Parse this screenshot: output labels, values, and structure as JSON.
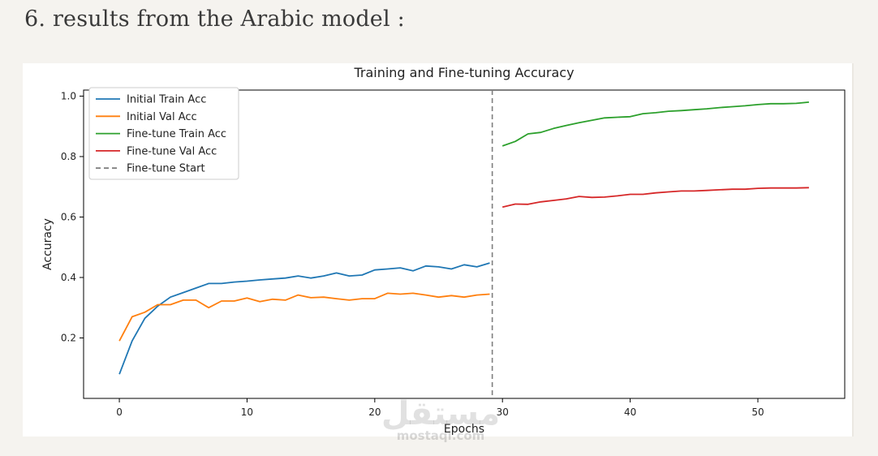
{
  "page": {
    "heading": "6. results from the Arabic model :"
  },
  "chart_data": {
    "type": "line",
    "title": "Training and Fine-tuning Accuracy",
    "xlabel": "Epochs",
    "ylabel": "Accuracy",
    "xlim": [
      -2.8,
      56.8
    ],
    "ylim": [
      0.0,
      1.02
    ],
    "xticks": [
      0,
      10,
      20,
      30,
      40,
      50
    ],
    "yticks": [
      0.2,
      0.4,
      0.6,
      0.8,
      1.0
    ],
    "grid": false,
    "legend_position": "upper-left",
    "series": [
      {
        "name": "Initial Train Acc",
        "color": "#1f77b4",
        "x": [
          0,
          1,
          2,
          3,
          4,
          5,
          6,
          7,
          8,
          9,
          10,
          11,
          12,
          13,
          14,
          15,
          16,
          17,
          18,
          19,
          20,
          21,
          22,
          23,
          24,
          25,
          26,
          27,
          28,
          29
        ],
        "values": [
          0.08,
          0.19,
          0.265,
          0.305,
          0.335,
          0.35,
          0.365,
          0.38,
          0.38,
          0.385,
          0.388,
          0.392,
          0.395,
          0.398,
          0.405,
          0.398,
          0.405,
          0.415,
          0.405,
          0.408,
          0.425,
          0.428,
          0.432,
          0.422,
          0.438,
          0.435,
          0.428,
          0.442,
          0.435,
          0.448
        ]
      },
      {
        "name": "Initial Val Acc",
        "color": "#ff7f0e",
        "x": [
          0,
          1,
          2,
          3,
          4,
          5,
          6,
          7,
          8,
          9,
          10,
          11,
          12,
          13,
          14,
          15,
          16,
          17,
          18,
          19,
          20,
          21,
          22,
          23,
          24,
          25,
          26,
          27,
          28,
          29
        ],
        "values": [
          0.19,
          0.27,
          0.285,
          0.31,
          0.31,
          0.325,
          0.325,
          0.3,
          0.322,
          0.322,
          0.332,
          0.32,
          0.328,
          0.325,
          0.342,
          0.333,
          0.335,
          0.33,
          0.325,
          0.33,
          0.33,
          0.348,
          0.345,
          0.348,
          0.342,
          0.335,
          0.34,
          0.335,
          0.342,
          0.345
        ]
      },
      {
        "name": "Fine-tune Train Acc",
        "color": "#2ca02c",
        "x": [
          30,
          31,
          32,
          33,
          34,
          35,
          36,
          37,
          38,
          39,
          40,
          41,
          42,
          43,
          44,
          45,
          46,
          47,
          48,
          49,
          50,
          51,
          52,
          53,
          54
        ],
        "values": [
          0.835,
          0.85,
          0.875,
          0.88,
          0.893,
          0.903,
          0.912,
          0.92,
          0.928,
          0.93,
          0.932,
          0.942,
          0.945,
          0.95,
          0.952,
          0.955,
          0.958,
          0.962,
          0.965,
          0.968,
          0.972,
          0.975,
          0.975,
          0.976,
          0.98
        ]
      },
      {
        "name": "Fine-tune Val Acc",
        "color": "#d62728",
        "x": [
          30,
          31,
          32,
          33,
          34,
          35,
          36,
          37,
          38,
          39,
          40,
          41,
          42,
          43,
          44,
          45,
          46,
          47,
          48,
          49,
          50,
          51,
          52,
          53,
          54
        ],
        "values": [
          0.633,
          0.643,
          0.642,
          0.65,
          0.655,
          0.66,
          0.668,
          0.665,
          0.666,
          0.67,
          0.675,
          0.675,
          0.68,
          0.683,
          0.686,
          0.686,
          0.688,
          0.69,
          0.692,
          0.692,
          0.695,
          0.696,
          0.696,
          0.696,
          0.697
        ]
      }
    ],
    "vline": {
      "name": "Fine-tune Start",
      "x": 29.2,
      "color": "#7f7f7f",
      "style": "dashed"
    }
  },
  "watermark": {
    "arabic": "مستقل",
    "latin": "mostaql.com"
  }
}
